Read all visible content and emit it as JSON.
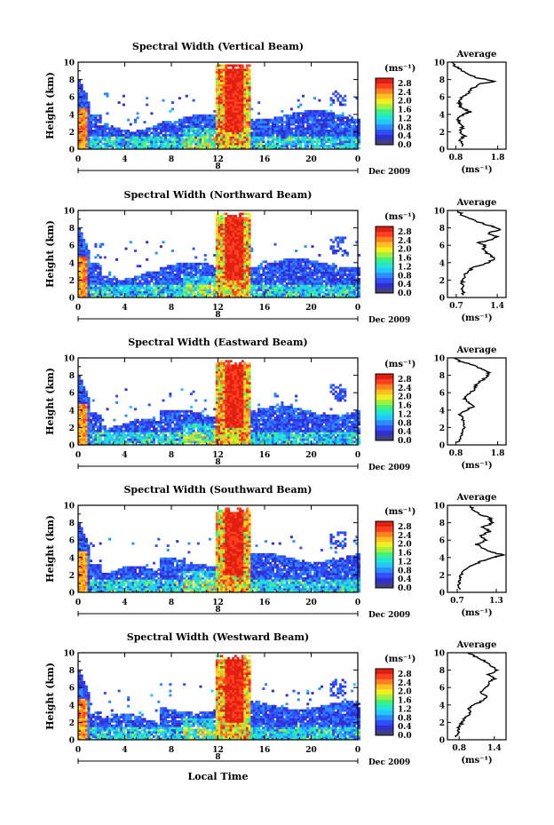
{
  "figure": {
    "xlabel": "Local Time",
    "colorbar_unit": "(ms⁻¹)",
    "colorbar_ticks": [
      "0.0",
      "0.4",
      "0.8",
      "1.2",
      "1.6",
      "2.0",
      "2.4",
      "2.8"
    ],
    "colormap": [
      "#404080",
      "#3030d0",
      "#3050ff",
      "#2c8cff",
      "#22c8ff",
      "#20e8d0",
      "#40f080",
      "#a0f040",
      "#f0f020",
      "#ffc020",
      "#ff8020",
      "#ff4020",
      "#e02010"
    ],
    "date_label": "Dec 2009",
    "day_label": "8"
  },
  "chart_data": [
    {
      "type": "heatmap",
      "title": "Spectral Width (Vertical Beam)",
      "ylabel": "Height (km)",
      "xlabel": "Local Time",
      "x_ticks": [
        "0",
        "4",
        "8",
        "12",
        "16",
        "20",
        "0"
      ],
      "y_ticks": [
        "0",
        "2",
        "4",
        "6",
        "8",
        "10"
      ],
      "xlim": [
        0,
        24
      ],
      "ylim": [
        0,
        10
      ],
      "colorbar_range": [
        0.0,
        2.8
      ],
      "profile": {
        "title": "Average",
        "xlabel": "(ms⁻¹)",
        "x_ticks": [
          "0.8",
          "1.8"
        ],
        "xlim": [
          0.6,
          2.0
        ],
        "y_ticks": [
          "0",
          "2",
          "4",
          "6",
          "8",
          "10"
        ],
        "ylim": [
          0,
          10
        ],
        "height": [
          0.3,
          1.0,
          1.5,
          2.0,
          2.5,
          3.0,
          3.5,
          4.0,
          4.3,
          4.7,
          5.0,
          5.5,
          6.0,
          6.5,
          7.0,
          7.5,
          7.8,
          8.2,
          8.6,
          9.0,
          9.5,
          10.0
        ],
        "value": [
          0.95,
          0.9,
          1.0,
          0.92,
          0.95,
          0.9,
          0.85,
          1.0,
          1.15,
          0.95,
          0.9,
          0.88,
          0.95,
          1.1,
          1.2,
          1.35,
          1.75,
          1.3,
          1.1,
          0.95,
          0.8,
          0.7
        ]
      }
    },
    {
      "type": "heatmap",
      "title": "Spectral Width (Northward Beam)",
      "ylabel": "Height (km)",
      "xlabel": "Local Time",
      "x_ticks": [
        "0",
        "4",
        "8",
        "12",
        "16",
        "20",
        "0"
      ],
      "y_ticks": [
        "0",
        "2",
        "4",
        "6",
        "8",
        "10"
      ],
      "xlim": [
        0,
        24
      ],
      "ylim": [
        0,
        10
      ],
      "colorbar_range": [
        0.0,
        2.8
      ],
      "profile": {
        "title": "Average",
        "xlabel": "(ms⁻¹)",
        "x_ticks": [
          "0.7",
          "1.4"
        ],
        "xlim": [
          0.55,
          1.55
        ],
        "y_ticks": [
          "0",
          "2",
          "4",
          "6",
          "8",
          "10"
        ],
        "ylim": [
          0,
          10
        ],
        "height": [
          0.3,
          1.0,
          1.5,
          2.0,
          2.5,
          3.0,
          3.5,
          4.0,
          4.5,
          5.0,
          5.5,
          6.0,
          6.3,
          6.6,
          7.0,
          7.4,
          7.8,
          8.2,
          8.6,
          9.0,
          9.5,
          10.0
        ],
        "value": [
          0.82,
          0.8,
          0.8,
          0.82,
          0.85,
          0.9,
          1.0,
          1.25,
          1.35,
          1.25,
          1.15,
          1.2,
          1.05,
          1.3,
          1.4,
          1.25,
          1.45,
          1.3,
          1.1,
          0.95,
          0.8,
          0.72
        ]
      }
    },
    {
      "type": "heatmap",
      "title": "Spectral Width (Eastward Beam)",
      "ylabel": "Height (km)",
      "xlabel": "Local Time",
      "x_ticks": [
        "0",
        "4",
        "8",
        "12",
        "16",
        "20",
        "0"
      ],
      "y_ticks": [
        "0",
        "2",
        "4",
        "6",
        "8",
        "10"
      ],
      "xlim": [
        0,
        24
      ],
      "ylim": [
        0,
        10
      ],
      "colorbar_range": [
        0.0,
        2.8
      ],
      "profile": {
        "title": "Average",
        "xlabel": "(ms⁻¹)",
        "x_ticks": [
          "0.8",
          "1.8"
        ],
        "xlim": [
          0.6,
          2.0
        ],
        "y_ticks": [
          "0",
          "2",
          "4",
          "6",
          "8",
          "10"
        ],
        "ylim": [
          0,
          10
        ],
        "height": [
          0.3,
          1.0,
          1.5,
          2.0,
          2.5,
          3.0,
          3.5,
          4.0,
          4.5,
          5.0,
          5.5,
          6.0,
          6.5,
          7.0,
          7.5,
          8.0,
          8.4,
          8.8,
          9.2,
          9.6,
          10.0
        ],
        "value": [
          0.85,
          0.9,
          0.95,
          1.0,
          1.0,
          0.95,
          0.9,
          1.05,
          1.25,
          1.05,
          1.0,
          1.15,
          1.25,
          1.3,
          1.45,
          1.55,
          1.6,
          1.4,
          1.2,
          0.9,
          0.75
        ]
      }
    },
    {
      "type": "heatmap",
      "title": "Spectral Width (Southward Beam)",
      "ylabel": "Height (km)",
      "xlabel": "Local Time",
      "x_ticks": [
        "0",
        "4",
        "8",
        "12",
        "16",
        "20",
        "0"
      ],
      "y_ticks": [
        "0",
        "2",
        "4",
        "6",
        "8",
        "10"
      ],
      "xlim": [
        0,
        24
      ],
      "ylim": [
        0,
        10
      ],
      "colorbar_range": [
        0.0,
        2.8
      ],
      "profile": {
        "title": "Average",
        "xlabel": "(ms⁻¹)",
        "x_ticks": [
          "0.7",
          "1.3"
        ],
        "xlim": [
          0.55,
          1.45
        ],
        "y_ticks": [
          "0",
          "2",
          "4",
          "6",
          "8",
          "10"
        ],
        "ylim": [
          0,
          10
        ],
        "height": [
          0.3,
          1.0,
          1.5,
          2.0,
          2.5,
          3.0,
          3.5,
          4.0,
          4.3,
          4.7,
          5.0,
          5.5,
          6.0,
          6.5,
          7.0,
          7.5,
          8.0,
          8.5,
          9.0,
          9.5,
          10.0
        ],
        "value": [
          0.72,
          0.72,
          0.74,
          0.75,
          0.8,
          0.9,
          1.05,
          1.25,
          1.4,
          1.2,
          1.1,
          1.0,
          1.15,
          1.05,
          1.2,
          1.1,
          1.25,
          1.2,
          1.05,
          0.95,
          0.9
        ]
      }
    },
    {
      "type": "heatmap",
      "title": "Spectral Width (Westward Beam)",
      "ylabel": "Height (km)",
      "xlabel": "Local Time",
      "x_ticks": [
        "0",
        "4",
        "8",
        "12",
        "16",
        "20",
        "0"
      ],
      "y_ticks": [
        "0",
        "2",
        "4",
        "6",
        "8",
        "10"
      ],
      "xlim": [
        0,
        24
      ],
      "ylim": [
        0,
        10
      ],
      "colorbar_range": [
        0.0,
        2.8
      ],
      "profile": {
        "title": "Average",
        "xlabel": "(ms⁻¹)",
        "x_ticks": [
          "0.8",
          "1.4"
        ],
        "xlim": [
          0.6,
          1.6
        ],
        "y_ticks": [
          "0",
          "2",
          "4",
          "6",
          "8",
          "10"
        ],
        "ylim": [
          0,
          10
        ],
        "height": [
          0.3,
          1.0,
          1.5,
          2.0,
          2.5,
          3.0,
          3.5,
          4.0,
          4.5,
          5.0,
          5.5,
          6.0,
          6.5,
          7.0,
          7.5,
          8.0,
          8.5,
          9.0,
          9.5,
          10.0
        ],
        "value": [
          0.75,
          0.78,
          0.8,
          0.85,
          0.9,
          1.0,
          0.95,
          1.05,
          1.2,
          1.3,
          1.15,
          1.25,
          1.3,
          1.4,
          1.3,
          1.45,
          1.35,
          1.25,
          1.1,
          0.95
        ]
      }
    }
  ]
}
